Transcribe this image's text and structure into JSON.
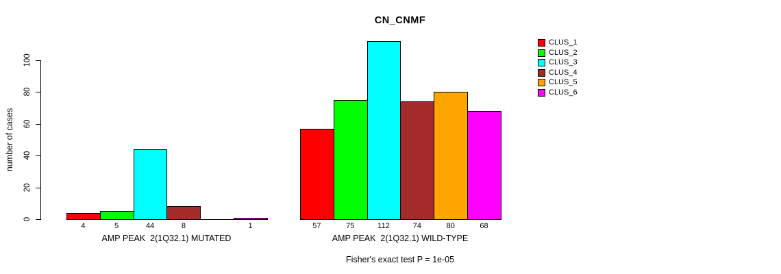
{
  "chart": {
    "title": "CN_CNMF",
    "ylabel": "number of cases",
    "footer": "Fisher's exact test P = 1e-05"
  },
  "chart_data": {
    "type": "bar",
    "title": "CN_CNMF",
    "ylabel": "number of cases",
    "xlabel": "",
    "ylim": [
      0,
      116
    ],
    "yticks": [
      0,
      20,
      40,
      60,
      80,
      100
    ],
    "grid": false,
    "legend_position": "top-right",
    "categories": [
      "CLUS_1",
      "CLUS_2",
      "CLUS_3",
      "CLUS_4",
      "CLUS_5",
      "CLUS_6"
    ],
    "colors": [
      "#ff0000",
      "#00ff00",
      "#00ffff",
      "#a52a2a",
      "#ffa500",
      "#ff00ff"
    ],
    "groups": [
      {
        "label": "AMP PEAK  2(1Q32.1) MUTATED",
        "values": [
          4,
          5,
          44,
          8,
          0,
          1
        ],
        "value_labels": [
          "4",
          "5",
          "44",
          "8",
          "",
          "1"
        ]
      },
      {
        "label": "AMP PEAK  2(1Q32.1) WILD-TYPE",
        "values": [
          57,
          75,
          112,
          74,
          80,
          68
        ],
        "value_labels": [
          "57",
          "75",
          "112",
          "74",
          "80",
          "68"
        ]
      }
    ],
    "annotation": "Fisher's exact test P = 1e-05"
  }
}
